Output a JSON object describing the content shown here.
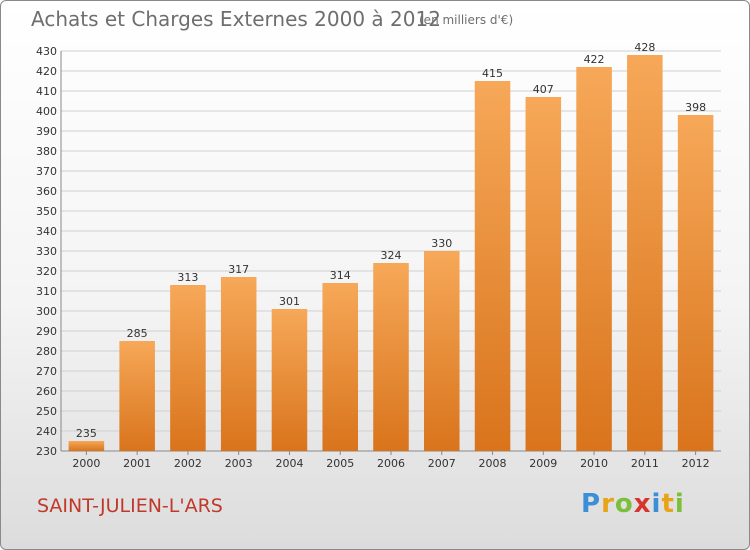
{
  "header": {
    "title": "Achats et Charges Externes 2000 à 2012",
    "unit": "(en milliers d'€)"
  },
  "footer": {
    "commune": "SAINT-JULIEN-L'ARS",
    "logo": {
      "letters": [
        "P",
        "r",
        "o",
        "x",
        "i",
        "t",
        "i"
      ],
      "colors": [
        "#3a8fd6",
        "#e8a317",
        "#7cbf3a",
        "#d9342b",
        "#3a8fd6",
        "#e8a317",
        "#7cbf3a"
      ]
    }
  },
  "colors": {
    "bar_light": "#f6a858",
    "bar_dark": "#d9741c",
    "grid": "#d0d0d0",
    "axis": "#888888"
  },
  "chart_data": {
    "type": "bar",
    "title": "Achats et Charges Externes 2000 à 2012",
    "subtitle": "(en milliers d'€)",
    "xlabel": "",
    "ylabel": "",
    "categories": [
      "2000",
      "2001",
      "2002",
      "2003",
      "2004",
      "2005",
      "2006",
      "2007",
      "2008",
      "2009",
      "2010",
      "2011",
      "2012"
    ],
    "values": [
      235,
      285,
      313,
      317,
      301,
      314,
      324,
      330,
      415,
      407,
      422,
      428,
      398
    ],
    "ylim": [
      230,
      430
    ],
    "ytick_step": 10,
    "grid": true,
    "data_labels": true
  }
}
